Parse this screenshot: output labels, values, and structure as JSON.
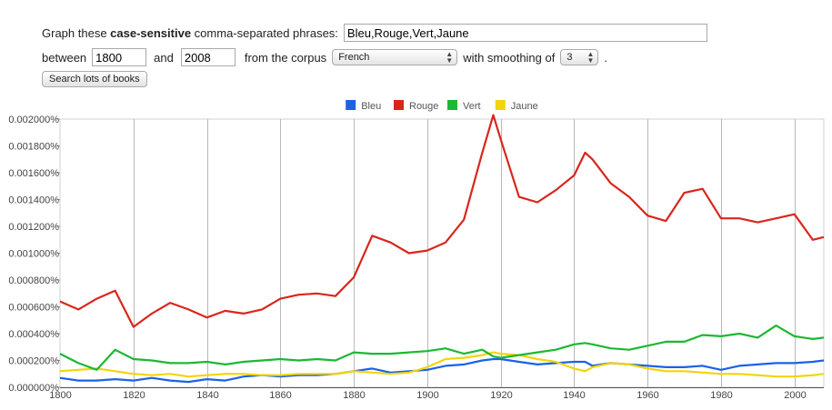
{
  "form": {
    "graph_prefix": "Graph these ",
    "case_sensitive": "case-sensitive",
    "graph_suffix": " comma-separated phrases:",
    "phrases_value": "Bleu,Rouge,Vert,Jaune",
    "between_label": "between",
    "start_year": "1800",
    "and_label": "and",
    "end_year": "2008",
    "corpus_label": "from the corpus",
    "corpus_value": "French",
    "smoothing_label": "with smoothing of",
    "smoothing_value": "3",
    "period": ".",
    "search_button": "Search lots of books"
  },
  "chart_data": {
    "type": "line",
    "title": "",
    "xlabel": "",
    "ylabel": "",
    "xlim": [
      1800,
      2008
    ],
    "ylim": [
      0,
      0.002
    ],
    "x_ticks": [
      1800,
      1820,
      1840,
      1860,
      1880,
      1900,
      1920,
      1940,
      1960,
      1980,
      2000
    ],
    "y_ticks": [
      "0.000000%",
      "0.000200%",
      "0.000400%",
      "0.000600%",
      "0.000800%",
      "0.001000%",
      "0.001200%",
      "0.001400%",
      "0.001600%",
      "0.001800%",
      "0.002000%"
    ],
    "y_tick_values": [
      0,
      0.0002,
      0.0004,
      0.0006,
      0.0008,
      0.001,
      0.0012,
      0.0014,
      0.0016,
      0.0018,
      0.002
    ],
    "legend_position": "top-center",
    "grid": "vertical",
    "colors": {
      "Bleu": "#1a62e6",
      "Rouge": "#d9261c",
      "Vert": "#1cb833",
      "Jaune": "#f2d40a"
    },
    "x": [
      1800,
      1805,
      1810,
      1815,
      1820,
      1825,
      1830,
      1835,
      1840,
      1845,
      1850,
      1855,
      1860,
      1865,
      1870,
      1875,
      1880,
      1885,
      1890,
      1895,
      1900,
      1905,
      1910,
      1915,
      1918,
      1920,
      1925,
      1930,
      1935,
      1940,
      1943,
      1945,
      1950,
      1955,
      1960,
      1965,
      1970,
      1975,
      1980,
      1985,
      1990,
      1995,
      2000,
      2005,
      2008
    ],
    "series": [
      {
        "name": "Bleu",
        "values": [
          7e-05,
          5e-05,
          5e-05,
          6e-05,
          5e-05,
          7e-05,
          5e-05,
          4e-05,
          6e-05,
          5e-05,
          8e-05,
          9e-05,
          8e-05,
          9e-05,
          9e-05,
          0.0001,
          0.00012,
          0.00014,
          0.00011,
          0.00012,
          0.00013,
          0.00016,
          0.00017,
          0.0002,
          0.00021,
          0.00021,
          0.00019,
          0.00017,
          0.00018,
          0.00019,
          0.00019,
          0.00016,
          0.00018,
          0.00017,
          0.00016,
          0.00015,
          0.00015,
          0.00016,
          0.00013,
          0.00016,
          0.00017,
          0.00018,
          0.00018,
          0.00019,
          0.0002
        ]
      },
      {
        "name": "Rouge",
        "values": [
          0.00064,
          0.00058,
          0.00066,
          0.00072,
          0.00045,
          0.00055,
          0.00063,
          0.00058,
          0.00052,
          0.00057,
          0.00055,
          0.00058,
          0.00066,
          0.00069,
          0.0007,
          0.00068,
          0.00082,
          0.00113,
          0.00108,
          0.001,
          0.00102,
          0.00108,
          0.00125,
          0.00175,
          0.00203,
          0.00185,
          0.00142,
          0.00138,
          0.00147,
          0.00158,
          0.00175,
          0.0017,
          0.00152,
          0.00142,
          0.00128,
          0.00124,
          0.00145,
          0.00148,
          0.00126,
          0.00126,
          0.00123,
          0.00126,
          0.00129,
          0.0011,
          0.00112
        ]
      },
      {
        "name": "Vert",
        "values": [
          0.00025,
          0.00018,
          0.00013,
          0.00028,
          0.00021,
          0.0002,
          0.00018,
          0.00018,
          0.00019,
          0.00017,
          0.00019,
          0.0002,
          0.00021,
          0.0002,
          0.00021,
          0.0002,
          0.00026,
          0.00025,
          0.00025,
          0.00026,
          0.00027,
          0.00029,
          0.00025,
          0.00028,
          0.00023,
          0.00022,
          0.00024,
          0.00026,
          0.00028,
          0.00032,
          0.00033,
          0.00032,
          0.00029,
          0.00028,
          0.00031,
          0.00034,
          0.00034,
          0.00039,
          0.00038,
          0.0004,
          0.00037,
          0.00046,
          0.00038,
          0.00036,
          0.00037
        ]
      },
      {
        "name": "Jaune",
        "values": [
          0.00012,
          0.00013,
          0.00014,
          0.00012,
          0.0001,
          9e-05,
          0.0001,
          8e-05,
          9e-05,
          0.0001,
          0.0001,
          9e-05,
          9e-05,
          0.0001,
          0.0001,
          0.0001,
          0.00012,
          0.00011,
          0.0001,
          0.00011,
          0.00015,
          0.00021,
          0.00022,
          0.00024,
          0.00026,
          0.00025,
          0.00024,
          0.00021,
          0.00019,
          0.00014,
          0.00012,
          0.00015,
          0.00018,
          0.00017,
          0.00014,
          0.00012,
          0.00012,
          0.00011,
          0.0001,
          0.0001,
          9e-05,
          8e-05,
          8e-05,
          9e-05,
          0.0001
        ]
      }
    ]
  }
}
